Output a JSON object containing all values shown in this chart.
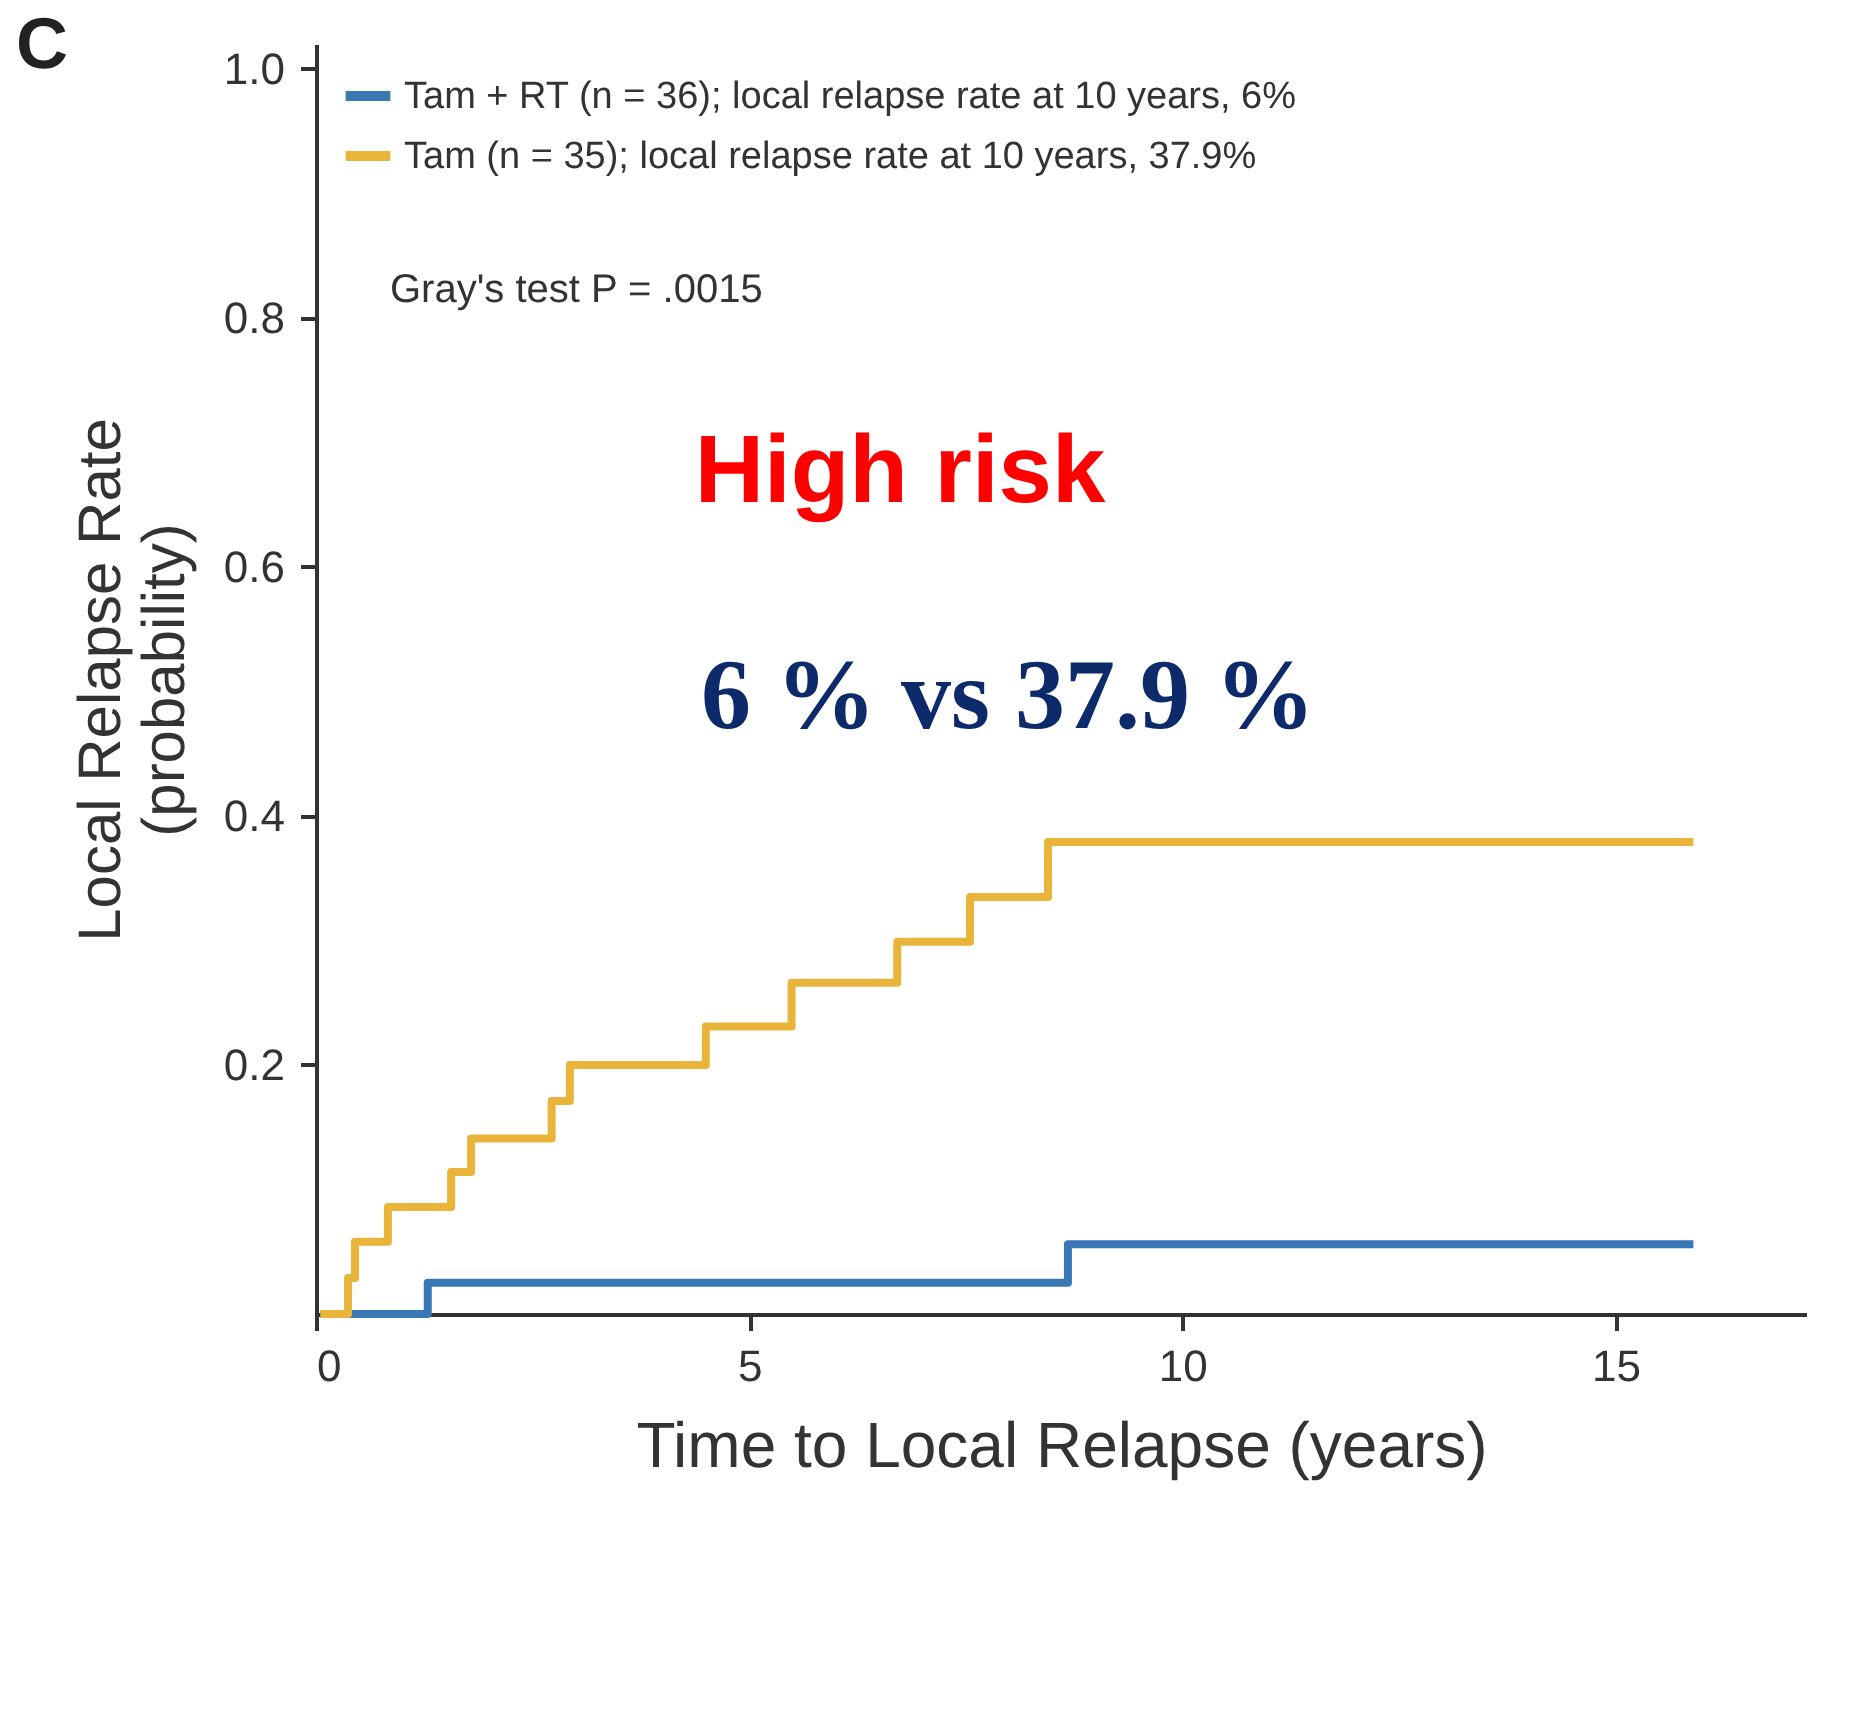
{
  "chart_data": {
    "type": "step",
    "title": "C",
    "xlabel": "Time to Local Relapse (years)",
    "ylabel": "Local Relapse Rate\n(probability)",
    "xlim": [
      0,
      17.2
    ],
    "ylim": [
      0,
      1.02
    ],
    "xticks": [
      0,
      5,
      10,
      15
    ],
    "yticks": [
      0.2,
      0.4,
      0.6,
      0.8,
      {
        "value": 1,
        "label": "1.0"
      }
    ],
    "grid": false,
    "legend": "top left",
    "line_style": "solid",
    "series": [
      {
        "name": "Tam + RT (n = 36); local relapse rate at 10 years, 6%",
        "color": "#3a78b5",
        "x": [
          0.05,
          1.29,
          8.68,
          15.9
        ],
        "values": [
          0,
          0.025,
          0.056,
          0.056
        ]
      },
      {
        "name": "Tam (n = 35); local relapse rate at 10 years, 37.9%",
        "color": "#e8b43a",
        "x": [
          0.05,
          0.37,
          0.45,
          0.83,
          1.56,
          1.79,
          2.72,
          2.93,
          4.5,
          5.49,
          6.71,
          7.55,
          8.45,
          15.9
        ],
        "values": [
          0,
          0.029,
          0.058,
          0.086,
          0.114,
          0.141,
          0.171,
          0.2,
          0.231,
          0.266,
          0.299,
          0.335,
          0.379,
          0.379
        ]
      }
    ],
    "annotations": [
      "Gray's test P = .0015",
      "High risk",
      "6 % vs 37.9 %"
    ]
  }
}
